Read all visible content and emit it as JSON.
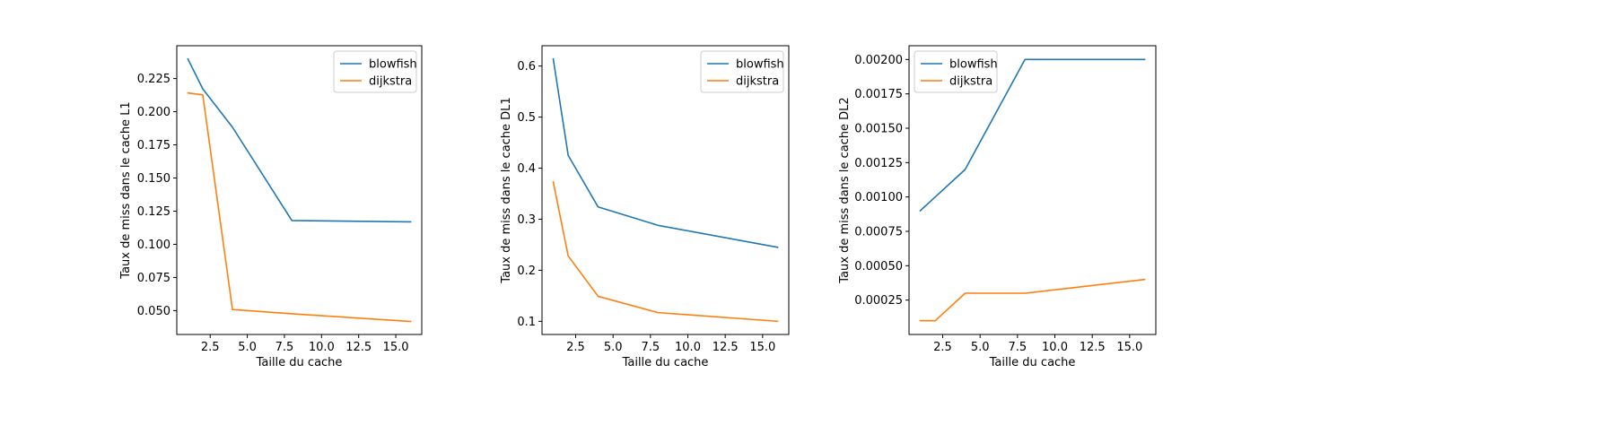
{
  "colors": {
    "blowfish": "#1f77b4",
    "dijkstra": "#ff7f0e"
  },
  "chart_data": [
    {
      "type": "line",
      "xlabel": "Taille du cache",
      "ylabel": "Taux de miss dans le cache L1",
      "xlim": [
        0.25,
        16.75
      ],
      "ylim": [
        0.032,
        0.24975
      ],
      "xticks": [
        2.5,
        5.0,
        7.5,
        10.0,
        12.5,
        15.0
      ],
      "xtick_labels": [
        "2.5",
        "5.0",
        "7.5",
        "10.0",
        "12.5",
        "15.0"
      ],
      "yticks": [
        0.05,
        0.075,
        0.1,
        0.125,
        0.15,
        0.175,
        0.2,
        0.225
      ],
      "ytick_labels": [
        "0.050",
        "0.075",
        "0.100",
        "0.125",
        "0.150",
        "0.175",
        "0.200",
        "0.225"
      ],
      "legend": "top-right",
      "grid": false,
      "x": [
        1,
        2,
        4,
        8,
        16
      ],
      "series": [
        {
          "name": "blowfish",
          "color": "#1f77b4",
          "values": [
            0.2397,
            0.2172,
            0.1883,
            0.1179,
            0.1169
          ]
        },
        {
          "name": "dijkstra",
          "color": "#ff7f0e",
          "values": [
            0.2141,
            0.2127,
            0.0508,
            0.0476,
            0.0418
          ]
        }
      ]
    },
    {
      "type": "line",
      "xlabel": "Taille du cache",
      "ylabel": "Taux de miss dans le cache DL1",
      "xlim": [
        0.25,
        16.75
      ],
      "ylim": [
        0.0742,
        0.6398
      ],
      "xticks": [
        2.5,
        5.0,
        7.5,
        10.0,
        12.5,
        15.0
      ],
      "xtick_labels": [
        "2.5",
        "5.0",
        "7.5",
        "10.0",
        "12.5",
        "15.0"
      ],
      "yticks": [
        0.1,
        0.2,
        0.3,
        0.4,
        0.5,
        0.6
      ],
      "ytick_labels": [
        "0.1",
        "0.2",
        "0.3",
        "0.4",
        "0.5",
        "0.6"
      ],
      "legend": "top-right",
      "grid": false,
      "x": [
        1,
        2,
        4,
        8,
        16
      ],
      "series": [
        {
          "name": "blowfish",
          "color": "#1f77b4",
          "values": [
            0.614,
            0.425,
            0.324,
            0.288,
            0.245
          ]
        },
        {
          "name": "dijkstra",
          "color": "#ff7f0e",
          "values": [
            0.373,
            0.228,
            0.149,
            0.117,
            0.1
          ]
        }
      ]
    },
    {
      "type": "line",
      "xlabel": "Taille du cache",
      "ylabel": "Taux de miss dans le cache DL2",
      "xlim": [
        0.25,
        16.75
      ],
      "ylim": [
        0.0,
        0.0021
      ],
      "xticks": [
        2.5,
        5.0,
        7.5,
        10.0,
        12.5,
        15.0
      ],
      "xtick_labels": [
        "2.5",
        "5.0",
        "7.5",
        "10.0",
        "12.5",
        "15.0"
      ],
      "yticks": [
        0.00025,
        0.0005,
        0.00075,
        0.001,
        0.00125,
        0.0015,
        0.00175,
        0.002
      ],
      "ytick_labels": [
        "0.00025",
        "0.00050",
        "0.00075",
        "0.00100",
        "0.00125",
        "0.00150",
        "0.00175",
        "0.00200"
      ],
      "legend": "top-left",
      "grid": false,
      "x": [
        1,
        2,
        4,
        8,
        16
      ],
      "series": [
        {
          "name": "blowfish",
          "color": "#1f77b4",
          "values": [
            0.0009,
            0.001,
            0.0012,
            0.002,
            0.002
          ]
        },
        {
          "name": "dijkstra",
          "color": "#ff7f0e",
          "values": [
            0.0001,
            0.0001,
            0.0003,
            0.0003,
            0.0004
          ]
        }
      ]
    }
  ]
}
